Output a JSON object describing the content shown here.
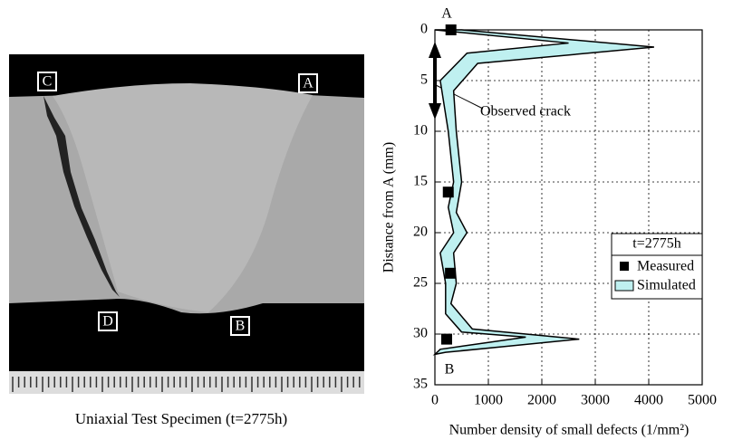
{
  "image": {
    "labels": [
      "C",
      "A",
      "D",
      "B"
    ],
    "caption": "Uniaxial Test Specimen (t=2775h)"
  },
  "chart_data": {
    "type": "profile",
    "xlabel": "Number density of small defects (1/mm²)",
    "ylabel": "Distance from A (mm)",
    "xlim": [
      0,
      5000
    ],
    "xticks": [
      0,
      1000,
      2000,
      3000,
      4000,
      5000
    ],
    "ylim": [
      0,
      35
    ],
    "yticks": [
      0,
      5,
      10,
      15,
      20,
      25,
      30,
      35
    ],
    "y_inverted": true,
    "grid": true,
    "legend_title": "t=2775h",
    "annotations": [
      "A",
      "B",
      "Observed crack"
    ],
    "measured": {
      "name": "Measured",
      "color": "#000000",
      "x": [
        300,
        250,
        290,
        220
      ],
      "y": [
        0,
        16,
        24,
        30.5
      ]
    },
    "simulated": {
      "name": "Simulated",
      "color": "#bff0f0",
      "lower": {
        "x": [
          0,
          2500,
          600,
          100,
          250,
          350,
          250,
          350,
          100,
          200,
          200,
          500,
          1700,
          100,
          0
        ],
        "y": [
          0,
          1.3,
          2.3,
          5,
          10,
          15,
          17.5,
          20,
          22,
          25,
          28,
          29.8,
          30.3,
          31.5,
          32
        ]
      },
      "upper": {
        "x": [
          500,
          4100,
          800,
          350,
          400,
          500,
          400,
          600,
          350,
          400,
          300,
          700,
          2700,
          200
        ],
        "y": [
          0,
          1.7,
          3.3,
          6,
          10,
          15,
          18,
          20,
          22,
          25,
          27,
          29.5,
          30.5,
          31.8
        ]
      }
    }
  }
}
